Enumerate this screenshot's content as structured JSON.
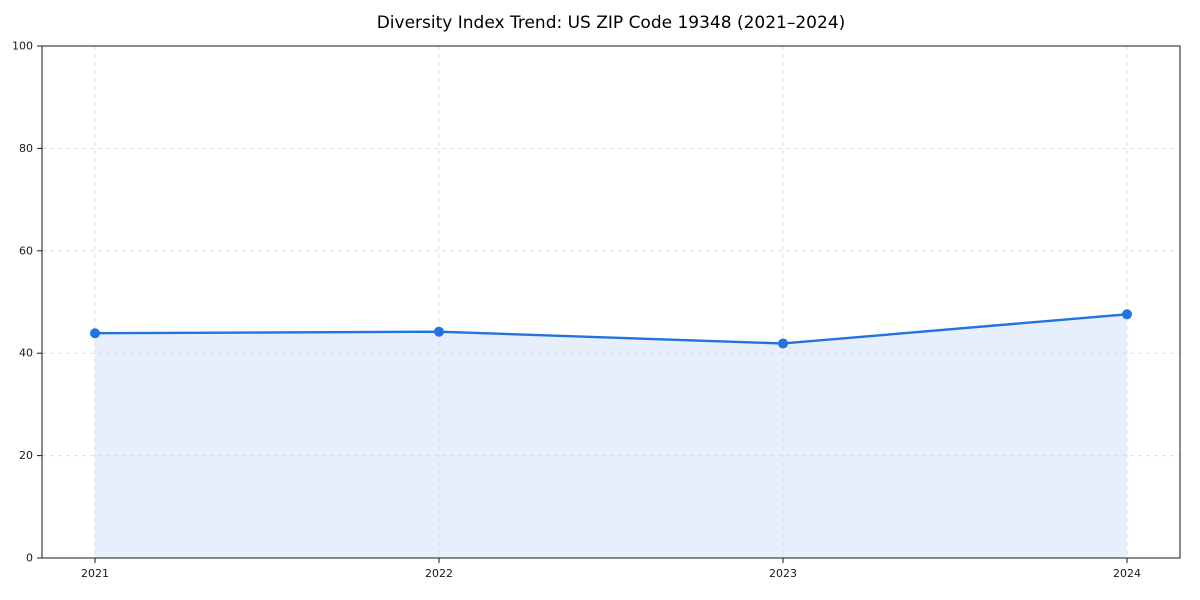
{
  "chart_data": {
    "type": "area",
    "title": "Diversity Index Trend: US ZIP Code 19348 (2021–2024)",
    "categories": [
      "2021",
      "2022",
      "2023",
      "2024"
    ],
    "series": [
      {
        "name": "Diversity Index",
        "values": [
          43.9,
          44.2,
          41.9,
          47.6
        ]
      }
    ],
    "xlabel": "",
    "ylabel": "",
    "ylim": [
      0,
      100
    ],
    "yticks": [
      0,
      20,
      40,
      60,
      80,
      100
    ],
    "grid": "dashed",
    "legend": "none",
    "colors": {
      "line": "#2273df",
      "marker": "#2273df",
      "fill": "#e7effc",
      "grid": "#dcdfe4",
      "axis": "#1a1a1a"
    }
  }
}
